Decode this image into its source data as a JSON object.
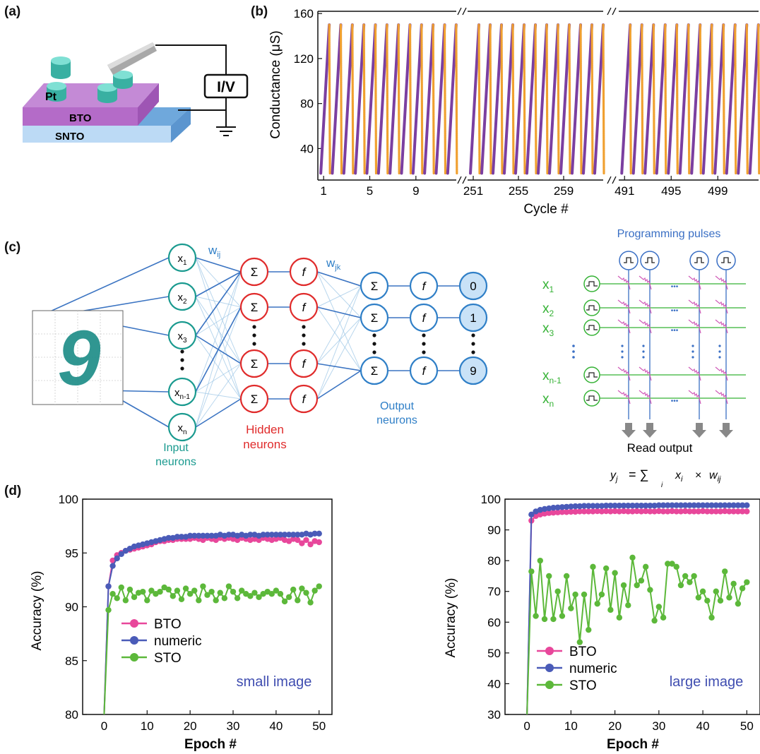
{
  "panel_labels": {
    "a": "(a)",
    "b": "(b)",
    "c": "(c)",
    "d": "(d)"
  },
  "device": {
    "electrode": "Pt",
    "film": "BTO",
    "substrate": "SNTO",
    "instrument": "I/V",
    "colors": {
      "film": "#b46bc8",
      "substrate": "#6fa8dc",
      "electrode": "#4fc7b8"
    }
  },
  "network": {
    "inputs": [
      "x1",
      "x2",
      "x3",
      "x(n-1)",
      "xn"
    ],
    "input_labels": [
      {
        "base": "x",
        "sub": "1"
      },
      {
        "base": "x",
        "sub": "2"
      },
      {
        "base": "x",
        "sub": "3"
      },
      {
        "base": "x",
        "sub": "n-1"
      },
      {
        "base": "x",
        "sub": "n"
      }
    ],
    "weight_ij": {
      "base": "w",
      "sub": "ij"
    },
    "weight_jk": {
      "base": "w",
      "sub": "jk"
    },
    "sum_symbol": "Σ",
    "activation_symbol": "f",
    "outputs": [
      "0",
      "1",
      "9"
    ],
    "input_caption": [
      "Input",
      "neurons"
    ],
    "hidden_caption": [
      "Hidden",
      "neurons"
    ],
    "output_caption": [
      "Output",
      "neurons"
    ],
    "digit": "9",
    "colors": {
      "input": "#1a9a8f",
      "hidden": "#e02b2b",
      "output": "#2f7fc7"
    }
  },
  "crossbar": {
    "title": "Programming pulses",
    "rows": [
      {
        "base": "x",
        "sub": "1"
      },
      {
        "base": "x",
        "sub": "2"
      },
      {
        "base": "x",
        "sub": "3"
      },
      {
        "base": "x",
        "sub": "n-1"
      },
      {
        "base": "x",
        "sub": "n"
      }
    ],
    "read_label": "Read output",
    "equation": {
      "lhs": "y",
      "lhs_sub": "j",
      "op": "= ∑",
      "sum_index": "i",
      "term": "x",
      "term_sub": "i",
      "times": "×",
      "w": "w",
      "w_sub": "ij"
    },
    "ellipsis": "•••",
    "colors": {
      "rows": "#35b235",
      "columns": "#3a6fc4",
      "devices": "#d05ab8"
    }
  },
  "chart_data": [
    {
      "type": "scatter",
      "panel": "b",
      "title": "",
      "xlabel": "Cycle #",
      "ylabel": "Conductance (μS)",
      "ylim": [
        12,
        162
      ],
      "yticks": [
        40,
        80,
        120,
        160
      ],
      "x_segments": [
        {
          "start": 1,
          "end": 12,
          "ticks": [
            1,
            5,
            9
          ]
        },
        {
          "start": 251,
          "end": 262,
          "ticks": [
            251,
            255,
            259
          ]
        },
        {
          "start": 491,
          "end": 502,
          "ticks": [
            491,
            495,
            499
          ]
        }
      ],
      "cycle_min_conductance": 18,
      "cycle_max_conductance": 150,
      "series": [
        {
          "color": "#7b3fa0",
          "values_description": "potentiation sweep 18 → 150 μS each cycle"
        },
        {
          "color": "#f0a030",
          "values_description": "depression sweep 150 → 18 μS each cycle"
        }
      ]
    },
    {
      "type": "line",
      "panel": "d-left",
      "xlabel": "Epoch #",
      "ylabel": "Accuracy (%)",
      "xlim": [
        -5,
        53
      ],
      "ylim": [
        80,
        100
      ],
      "xticks": [
        0,
        10,
        20,
        30,
        40,
        50
      ],
      "yticks": [
        80,
        85,
        90,
        95,
        100
      ],
      "annotation": "small image",
      "x": [
        0,
        1,
        2,
        3,
        4,
        5,
        6,
        7,
        8,
        9,
        10,
        11,
        12,
        13,
        14,
        15,
        16,
        17,
        18,
        19,
        20,
        21,
        22,
        23,
        24,
        25,
        26,
        27,
        28,
        29,
        30,
        31,
        32,
        33,
        34,
        35,
        36,
        37,
        38,
        39,
        40,
        41,
        42,
        43,
        44,
        45,
        46,
        47,
        48,
        49,
        50
      ],
      "series": [
        {
          "name": "BTO",
          "color": "#e8479b",
          "values": [
            80,
            91.9,
            94.3,
            94.8,
            95.0,
            95.2,
            95.3,
            95.4,
            95.5,
            95.6,
            95.7,
            95.8,
            96.0,
            96.1,
            96.1,
            96.2,
            96.2,
            96.3,
            96.3,
            96.3,
            96.3,
            96.4,
            96.3,
            96.2,
            96.4,
            96.3,
            96.2,
            96.4,
            96.3,
            96.4,
            96.3,
            96.2,
            96.4,
            96.3,
            96.2,
            96.3,
            96.2,
            96.4,
            96.3,
            96.2,
            96.3,
            96.4,
            96.2,
            96.1,
            96.3,
            96.2,
            95.9,
            96.2,
            95.8,
            96.1,
            96.0
          ]
        },
        {
          "name": "numeric",
          "color": "#4a5bb8",
          "values": [
            80,
            91.9,
            93.8,
            94.5,
            94.9,
            95.2,
            95.4,
            95.6,
            95.7,
            95.8,
            95.9,
            96.0,
            96.1,
            96.2,
            96.3,
            96.4,
            96.4,
            96.5,
            96.5,
            96.5,
            96.6,
            96.6,
            96.6,
            96.6,
            96.6,
            96.6,
            96.6,
            96.7,
            96.6,
            96.7,
            96.7,
            96.6,
            96.7,
            96.6,
            96.7,
            96.7,
            96.6,
            96.7,
            96.7,
            96.7,
            96.7,
            96.7,
            96.7,
            96.7,
            96.7,
            96.7,
            96.7,
            96.8,
            96.7,
            96.8,
            96.8
          ]
        },
        {
          "name": "STO",
          "color": "#5cb83a",
          "values": [
            80,
            89.7,
            91.2,
            90.8,
            91.8,
            90.6,
            91.6,
            90.9,
            91.3,
            91.4,
            90.6,
            91.5,
            91.2,
            91.4,
            91.8,
            91.6,
            91.0,
            91.5,
            90.7,
            91.7,
            91.2,
            91.5,
            90.6,
            91.9,
            91.1,
            91.4,
            90.6,
            91.3,
            90.8,
            91.9,
            91.4,
            90.8,
            91.5,
            91.2,
            91.0,
            91.3,
            90.9,
            91.2,
            91.4,
            91.2,
            91.5,
            91.2,
            90.5,
            90.9,
            91.6,
            90.6,
            91.7,
            91.3,
            90.4,
            91.5,
            91.9
          ]
        }
      ]
    },
    {
      "type": "line",
      "panel": "d-right",
      "xlabel": "Epoch #",
      "ylabel": "Accuracy (%)",
      "xlim": [
        -5,
        53
      ],
      "ylim": [
        30,
        100
      ],
      "xticks": [
        0,
        10,
        20,
        30,
        40,
        50
      ],
      "yticks": [
        30,
        40,
        50,
        60,
        70,
        80,
        90,
        100
      ],
      "annotation": "large image",
      "x": [
        0,
        1,
        2,
        3,
        4,
        5,
        6,
        7,
        8,
        9,
        10,
        11,
        12,
        13,
        14,
        15,
        16,
        17,
        18,
        19,
        20,
        21,
        22,
        23,
        24,
        25,
        26,
        27,
        28,
        29,
        30,
        31,
        32,
        33,
        34,
        35,
        36,
        37,
        38,
        39,
        40,
        41,
        42,
        43,
        44,
        45,
        46,
        47,
        48,
        49,
        50
      ],
      "series": [
        {
          "name": "BTO",
          "color": "#e8479b",
          "values": [
            30,
            93.0,
            94.5,
            95.0,
            95.3,
            95.5,
            95.6,
            95.7,
            95.8,
            95.8,
            95.9,
            95.9,
            96.0,
            96.0,
            96.0,
            96.0,
            96.1,
            96.0,
            96.1,
            96.0,
            96.1,
            96.0,
            96.1,
            96.0,
            96.0,
            96.1,
            96.0,
            96.1,
            96.0,
            96.0,
            96.1,
            96.0,
            96.0,
            96.1,
            96.0,
            96.0,
            96.1,
            96.0,
            96.0,
            96.0,
            96.1,
            96.0,
            96.0,
            96.0,
            96.0,
            96.1,
            96.0,
            96.0,
            96.0,
            96.0,
            96.0
          ]
        },
        {
          "name": "numeric",
          "color": "#4a5bb8",
          "values": [
            30,
            95.0,
            96.0,
            96.5,
            96.8,
            97.0,
            97.2,
            97.3,
            97.4,
            97.5,
            97.6,
            97.7,
            97.7,
            97.8,
            97.8,
            97.8,
            97.8,
            97.8,
            97.9,
            97.9,
            97.9,
            97.9,
            97.9,
            97.9,
            97.9,
            97.9,
            97.9,
            97.9,
            97.9,
            97.9,
            98.0,
            98.0,
            98.0,
            98.0,
            98.0,
            98.0,
            98.0,
            98.0,
            98.0,
            98.0,
            98.0,
            98.0,
            98.0,
            98.0,
            98.0,
            98.0,
            98.0,
            98.0,
            98.0,
            98.0,
            98.0
          ]
        },
        {
          "name": "STO",
          "color": "#5cb83a",
          "values": [
            30,
            76.5,
            62.0,
            80.0,
            61.0,
            75.0,
            61.0,
            70.0,
            62.0,
            75.0,
            64.5,
            69.0,
            53.5,
            69.0,
            57.5,
            78.0,
            66.0,
            69.0,
            77.5,
            64.0,
            76.0,
            61.5,
            72.0,
            65.5,
            81.0,
            72.0,
            73.5,
            78.0,
            70.5,
            60.5,
            65.0,
            61.5,
            79.0,
            79.0,
            78.0,
            72.0,
            75.0,
            73.0,
            75.0,
            68.0,
            70.0,
            67.0,
            61.5,
            70.0,
            67.0,
            76.5,
            68.0,
            72.5,
            66.0,
            71.0,
            73.0
          ]
        }
      ]
    }
  ]
}
